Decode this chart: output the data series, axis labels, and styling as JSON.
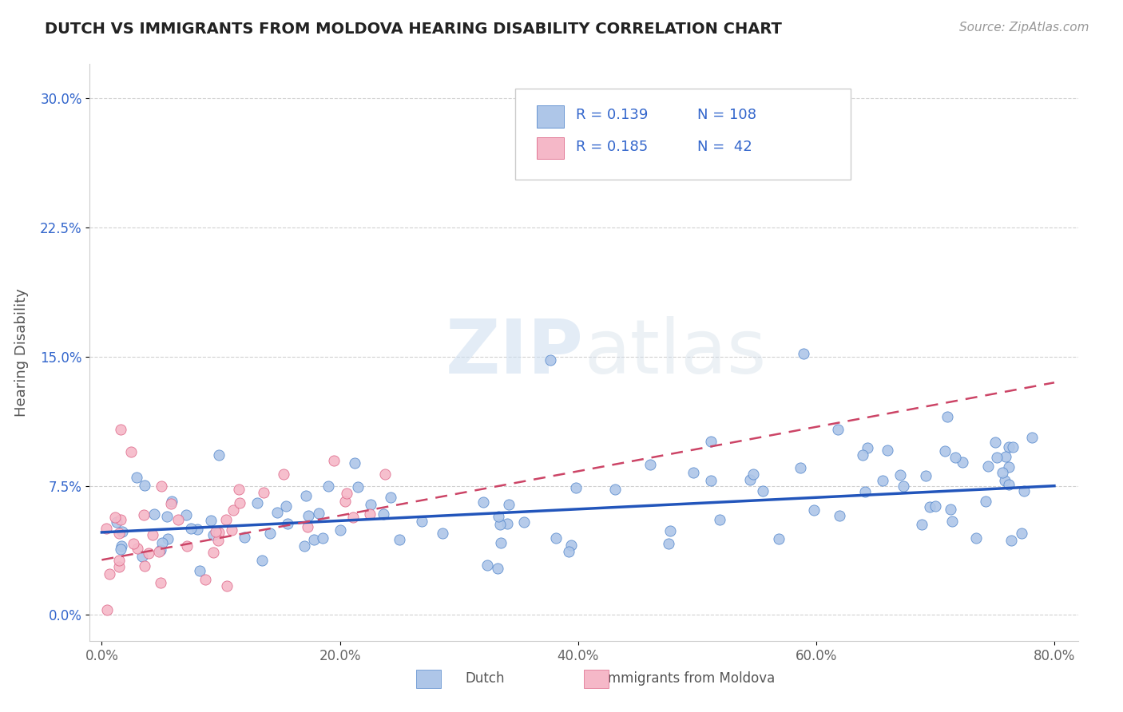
{
  "title": "DUTCH VS IMMIGRANTS FROM MOLDOVA HEARING DISABILITY CORRELATION CHART",
  "source": "Source: ZipAtlas.com",
  "ylabel": "Hearing Disability",
  "watermark": "ZIPatlas",
  "xlim": [
    -0.01,
    0.82
  ],
  "ylim": [
    -0.015,
    0.32
  ],
  "xticks": [
    0.0,
    0.2,
    0.4,
    0.6,
    0.8
  ],
  "xticklabels": [
    "0.0%",
    "20.0%",
    "40.0%",
    "60.0%",
    "80.0%"
  ],
  "yticks": [
    0.0,
    0.075,
    0.15,
    0.225,
    0.3
  ],
  "yticklabels": [
    "0.0%",
    "7.5%",
    "15.0%",
    "22.5%",
    "30.0%"
  ],
  "dutch_R": 0.139,
  "dutch_N": 108,
  "moldova_R": 0.185,
  "moldova_N": 42,
  "dutch_color": "#aec6e8",
  "dutch_edge_color": "#5588cc",
  "dutch_line_color": "#2255bb",
  "moldova_color": "#f5b8c8",
  "moldova_edge_color": "#dd6688",
  "moldova_line_color": "#cc4466",
  "legend_text_color": "#3366cc",
  "background_color": "#ffffff",
  "grid_color": "#cccccc",
  "dutch_trend_x0": 0.0,
  "dutch_trend_y0": 0.048,
  "dutch_trend_x1": 0.8,
  "dutch_trend_y1": 0.075,
  "moldova_trend_x0": 0.0,
  "moldova_trend_y0": 0.032,
  "moldova_trend_x1": 0.8,
  "moldova_trend_y1": 0.135
}
